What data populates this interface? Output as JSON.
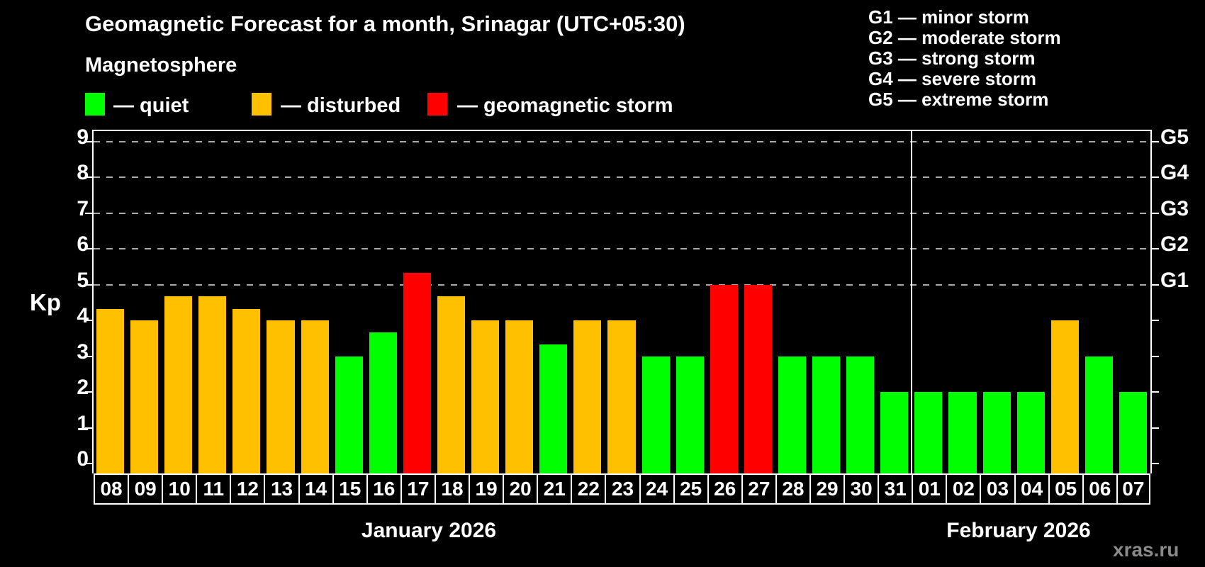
{
  "header": {
    "title": "Geomagnetic Forecast for a month, Srinagar (UTC+05:30)",
    "subtitle": "Magnetosphere"
  },
  "legend": {
    "quiet_label": "— quiet",
    "disturbed_label": "— disturbed",
    "storm_label": "— geomagnetic storm"
  },
  "storm_scale": [
    "G1 — minor storm",
    "G2 — moderate storm",
    "G3 — strong storm",
    "G4 — severe storm",
    "G5 — extreme storm"
  ],
  "watermark": "xras.ru",
  "chart_data": {
    "type": "bar",
    "title": "Geomagnetic Forecast for a month, Srinagar (UTC+05:30)",
    "ylabel": "Kp",
    "ylim": [
      0,
      9
    ],
    "y_ticks": [
      0,
      1,
      2,
      3,
      4,
      5,
      6,
      7,
      8,
      9
    ],
    "gridlines_at_kp": [
      5,
      6,
      7,
      8,
      9
    ],
    "grid_color": "#aaaaaa",
    "g_scale_labels": [
      {
        "kp": 5,
        "label": "G1"
      },
      {
        "kp": 6,
        "label": "G2"
      },
      {
        "kp": 7,
        "label": "G3"
      },
      {
        "kp": 8,
        "label": "G4"
      },
      {
        "kp": 9,
        "label": "G5"
      }
    ],
    "status_colors": {
      "quiet": "#00FF00",
      "disturbed": "#FFC000",
      "storm": "#FF0000"
    },
    "months": [
      {
        "label": "January 2026",
        "days": 24
      },
      {
        "label": "February 2026",
        "days": 7
      }
    ],
    "bars": [
      {
        "day": "08",
        "kp": 4.33,
        "status": "disturbed"
      },
      {
        "day": "09",
        "kp": 4.0,
        "status": "disturbed"
      },
      {
        "day": "10",
        "kp": 4.67,
        "status": "disturbed"
      },
      {
        "day": "11",
        "kp": 4.67,
        "status": "disturbed"
      },
      {
        "day": "12",
        "kp": 4.33,
        "status": "disturbed"
      },
      {
        "day": "13",
        "kp": 4.0,
        "status": "disturbed"
      },
      {
        "day": "14",
        "kp": 4.0,
        "status": "disturbed"
      },
      {
        "day": "15",
        "kp": 3.0,
        "status": "quiet"
      },
      {
        "day": "16",
        "kp": 3.67,
        "status": "quiet"
      },
      {
        "day": "17",
        "kp": 5.33,
        "status": "storm"
      },
      {
        "day": "18",
        "kp": 4.67,
        "status": "disturbed"
      },
      {
        "day": "19",
        "kp": 4.0,
        "status": "disturbed"
      },
      {
        "day": "20",
        "kp": 4.0,
        "status": "disturbed"
      },
      {
        "day": "21",
        "kp": 3.33,
        "status": "quiet"
      },
      {
        "day": "22",
        "kp": 4.0,
        "status": "disturbed"
      },
      {
        "day": "23",
        "kp": 4.0,
        "status": "disturbed"
      },
      {
        "day": "24",
        "kp": 3.0,
        "status": "quiet"
      },
      {
        "day": "25",
        "kp": 3.0,
        "status": "quiet"
      },
      {
        "day": "26",
        "kp": 5.0,
        "status": "storm"
      },
      {
        "day": "27",
        "kp": 5.0,
        "status": "storm"
      },
      {
        "day": "28",
        "kp": 3.0,
        "status": "quiet"
      },
      {
        "day": "29",
        "kp": 3.0,
        "status": "quiet"
      },
      {
        "day": "30",
        "kp": 3.0,
        "status": "quiet"
      },
      {
        "day": "31",
        "kp": 2.0,
        "status": "quiet"
      },
      {
        "day": "01",
        "kp": 2.0,
        "status": "quiet"
      },
      {
        "day": "02",
        "kp": 2.0,
        "status": "quiet"
      },
      {
        "day": "03",
        "kp": 2.0,
        "status": "quiet"
      },
      {
        "day": "04",
        "kp": 2.0,
        "status": "quiet"
      },
      {
        "day": "05",
        "kp": 4.0,
        "status": "disturbed"
      },
      {
        "day": "06",
        "kp": 3.0,
        "status": "quiet"
      },
      {
        "day": "07",
        "kp": 2.0,
        "status": "quiet"
      }
    ]
  }
}
